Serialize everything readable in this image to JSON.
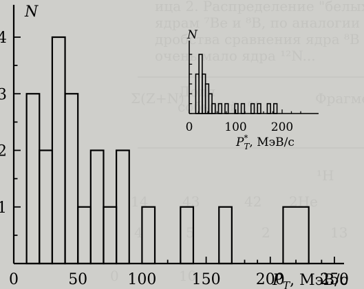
{
  "background": {
    "bleed_text": [
      "ица 2. Распределение \"белых звезд\". Сравнен",
      "ядрам ⁷Be и ⁸B, по аналогии возможно сопо",
      "дробства сравнения ядра ⁸B на зарядовой",
      "очень мало ядра ¹²N..."
    ],
    "bleed_table_cells": [
      "Фрагментная",
      "Σ(Z+N)",
      "Доля",
      "событий, %",
      "¹H",
      "2He",
      "42",
      "43",
      "14",
      "5",
      "2",
      "4",
      "13",
      "10",
      "0"
    ]
  },
  "chart_data": [
    {
      "type": "histogram",
      "title": "",
      "xlabel": "P_T, МэВ/c",
      "ylabel": "N",
      "xlim": [
        0,
        250
      ],
      "ylim": [
        0,
        4
      ],
      "x_ticks": [
        "0",
        "50",
        "100",
        "150",
        "200",
        "250"
      ],
      "y_ticks": [
        "1",
        "2",
        "3",
        "4"
      ],
      "bin_width": 10,
      "bins": [
        {
          "x0": 10,
          "x1": 20,
          "count": 3
        },
        {
          "x0": 20,
          "x1": 30,
          "count": 2
        },
        {
          "x0": 30,
          "x1": 40,
          "count": 4
        },
        {
          "x0": 40,
          "x1": 50,
          "count": 3
        },
        {
          "x0": 50,
          "x1": 60,
          "count": 1
        },
        {
          "x0": 60,
          "x1": 70,
          "count": 2
        },
        {
          "x0": 70,
          "x1": 80,
          "count": 1
        },
        {
          "x0": 80,
          "x1": 90,
          "count": 2
        },
        {
          "x0": 100,
          "x1": 110,
          "count": 1
        },
        {
          "x0": 130,
          "x1": 140,
          "count": 1
        },
        {
          "x0": 160,
          "x1": 170,
          "count": 1
        },
        {
          "x0": 210,
          "x1": 230,
          "count": 1
        }
      ]
    },
    {
      "type": "histogram",
      "title": "",
      "xlabel": "P*_T, МэВ/c",
      "ylabel": "N",
      "xlim": [
        0,
        240
      ],
      "ylim": [
        0,
        6
      ],
      "x_ticks": [
        "0",
        "100",
        "200"
      ],
      "bin_width": 7,
      "bins": [
        {
          "x0": 14,
          "x1": 21,
          "count": 4
        },
        {
          "x0": 21,
          "x1": 28,
          "count": 6
        },
        {
          "x0": 28,
          "x1": 35,
          "count": 4
        },
        {
          "x0": 35,
          "x1": 42,
          "count": 3
        },
        {
          "x0": 42,
          "x1": 49,
          "count": 2
        },
        {
          "x0": 49,
          "x1": 56,
          "count": 1
        },
        {
          "x0": 63,
          "x1": 70,
          "count": 1
        },
        {
          "x0": 77,
          "x1": 84,
          "count": 1
        },
        {
          "x0": 98,
          "x1": 105,
          "count": 1
        },
        {
          "x0": 112,
          "x1": 119,
          "count": 1
        },
        {
          "x0": 133,
          "x1": 140,
          "count": 1
        },
        {
          "x0": 147,
          "x1": 154,
          "count": 1
        },
        {
          "x0": 168,
          "x1": 175,
          "count": 1
        },
        {
          "x0": 182,
          "x1": 189,
          "count": 1
        }
      ]
    }
  ]
}
